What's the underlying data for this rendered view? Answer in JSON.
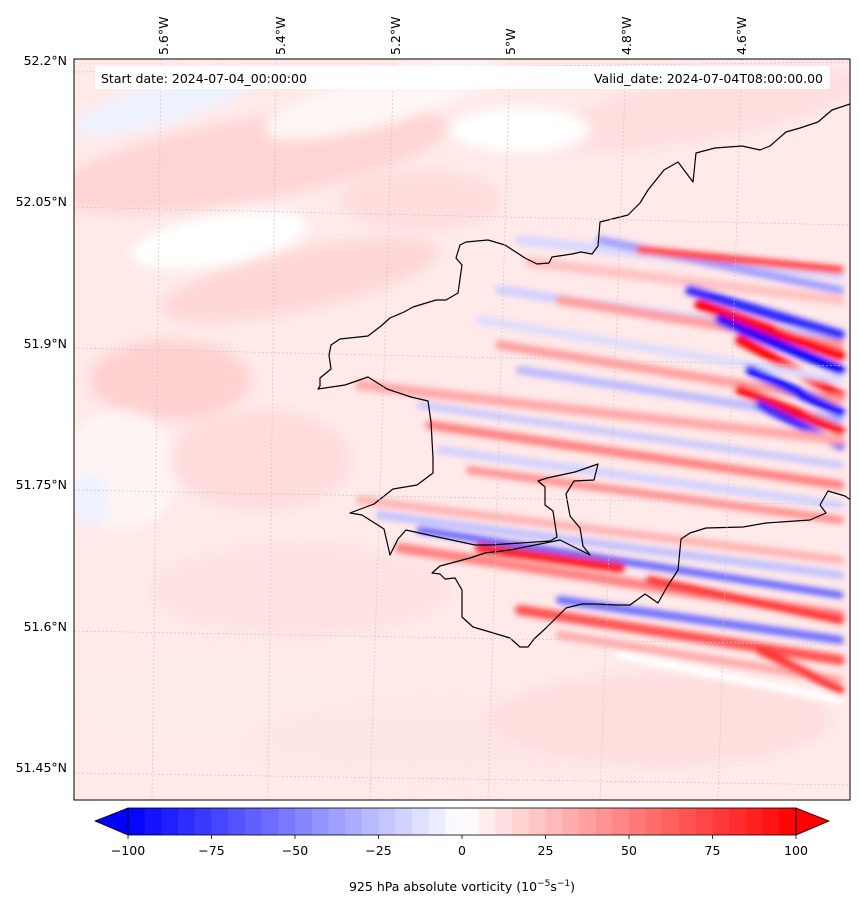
{
  "figure": {
    "start_label": "Start date: 2024-07-04_00:00:00",
    "valid_label": "Valid_date: 2024-07-04T08:00:00.00"
  },
  "axes": {
    "lon_ticks": [
      {
        "label": "5.6°W",
        "value": -5.6
      },
      {
        "label": "5.4°W",
        "value": -5.4
      },
      {
        "label": "5.2°W",
        "value": -5.2
      },
      {
        "label": "5°W",
        "value": -5.0
      },
      {
        "label": "4.8°W",
        "value": -4.8
      },
      {
        "label": "4.6°W",
        "value": -4.6
      }
    ],
    "lat_ticks": [
      {
        "label": "52.2°N",
        "value": 52.2
      },
      {
        "label": "52.05°N",
        "value": 52.05
      },
      {
        "label": "51.9°N",
        "value": 51.9
      },
      {
        "label": "51.75°N",
        "value": 51.75
      },
      {
        "label": "51.6°N",
        "value": 51.6
      },
      {
        "label": "51.45°N",
        "value": 51.45
      }
    ]
  },
  "colorbar": {
    "label_prefix": "925 hPa absolute vorticity (10",
    "label_exp1": "−5",
    "label_mid": "s",
    "label_exp2": "−1",
    "label_suffix": ")",
    "min": -100,
    "max": 100,
    "step": 5,
    "extend": "both",
    "low_color": "#0000ff",
    "mid_color": "#ffffff",
    "high_color": "#ff0000",
    "ticks": [
      {
        "label": "−100",
        "value": -100
      },
      {
        "label": "−75",
        "value": -75
      },
      {
        "label": "−50",
        "value": -50
      },
      {
        "label": "−25",
        "value": -25
      },
      {
        "label": "0",
        "value": 0
      },
      {
        "label": "25",
        "value": 25
      },
      {
        "label": "50",
        "value": 50
      },
      {
        "label": "75",
        "value": 75
      },
      {
        "label": "100",
        "value": 100
      }
    ]
  }
}
